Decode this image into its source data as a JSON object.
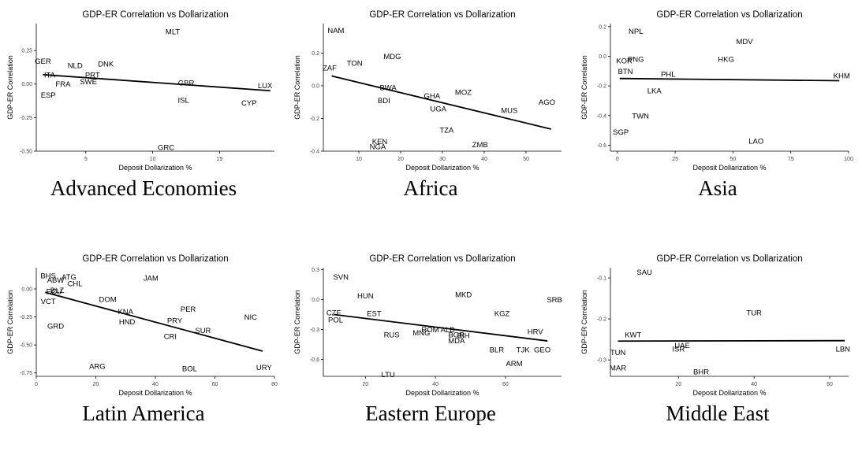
{
  "panels": [
    {
      "caption": "Advanced Economies",
      "chart_data": {
        "type": "scatter",
        "title": "GDP-ER Correlation vs Dollarization",
        "xlabel": "Deposit Dollarization %",
        "ylabel": "GDP-ER Correlation",
        "xlim": [
          1.3,
          19.1
        ],
        "ylim": [
          -0.5,
          0.45
        ],
        "xticks": [
          5,
          10,
          15
        ],
        "yticks": [
          -0.5,
          -0.25,
          0.0,
          0.25
        ],
        "ytick_labels": [
          "-0.50",
          "-0.25",
          "0.00",
          "0.25"
        ],
        "points": [
          {
            "label": "MLT",
            "x": 11.5,
            "y": 0.39
          },
          {
            "label": "GER",
            "x": 1.8,
            "y": 0.17
          },
          {
            "label": "NLD",
            "x": 4.2,
            "y": 0.14
          },
          {
            "label": "DNK",
            "x": 6.5,
            "y": 0.15
          },
          {
            "label": "ITA",
            "x": 2.3,
            "y": 0.07
          },
          {
            "label": "PRT",
            "x": 5.5,
            "y": 0.07
          },
          {
            "label": "FRA",
            "x": 3.3,
            "y": 0.0
          },
          {
            "label": "SWE",
            "x": 5.2,
            "y": 0.02
          },
          {
            "label": "GBR",
            "x": 12.5,
            "y": 0.01
          },
          {
            "label": "LUX",
            "x": 18.4,
            "y": -0.01
          },
          {
            "label": "ESP",
            "x": 2.2,
            "y": -0.08
          },
          {
            "label": "ISL",
            "x": 12.3,
            "y": -0.12
          },
          {
            "label": "CYP",
            "x": 17.2,
            "y": -0.14
          },
          {
            "label": "GRC",
            "x": 11.0,
            "y": -0.47
          }
        ],
        "fit_line": [
          [
            1.8,
            0.07
          ],
          [
            18.8,
            -0.05
          ]
        ]
      }
    },
    {
      "caption": "Africa",
      "chart_data": {
        "type": "scatter",
        "title": "GDP-ER Correlation vs Dollarization",
        "xlabel": "Deposit Dollarization %",
        "ylabel": "GDP-ER Correlation",
        "xlim": [
          1.5,
          58.5
        ],
        "ylim": [
          -0.4,
          0.38
        ],
        "xticks": [
          10,
          20,
          30,
          40,
          50
        ],
        "yticks": [
          -0.4,
          -0.2,
          0.0,
          0.2
        ],
        "ytick_labels": [
          "-0.4",
          "-0.2",
          "0.0",
          "0.2"
        ],
        "points": [
          {
            "label": "NAM",
            "x": 4.5,
            "y": 0.34
          },
          {
            "label": "MDG",
            "x": 18.0,
            "y": 0.18
          },
          {
            "label": "TON",
            "x": 9.0,
            "y": 0.14
          },
          {
            "label": "ZAF",
            "x": 3.0,
            "y": 0.11
          },
          {
            "label": "BWA",
            "x": 17.0,
            "y": -0.01
          },
          {
            "label": "MOZ",
            "x": 35.0,
            "y": -0.04
          },
          {
            "label": "GHA",
            "x": 27.5,
            "y": -0.06
          },
          {
            "label": "AGO",
            "x": 55.0,
            "y": -0.1
          },
          {
            "label": "BDI",
            "x": 16.0,
            "y": -0.09
          },
          {
            "label": "UGA",
            "x": 29.0,
            "y": -0.14
          },
          {
            "label": "MUS",
            "x": 46.0,
            "y": -0.15
          },
          {
            "label": "TZA",
            "x": 31.0,
            "y": -0.27
          },
          {
            "label": "KEN",
            "x": 15.0,
            "y": -0.34
          },
          {
            "label": "ZMB",
            "x": 39.0,
            "y": -0.36
          },
          {
            "label": "NGA",
            "x": 14.5,
            "y": -0.37
          }
        ],
        "fit_line": [
          [
            3.5,
            0.06
          ],
          [
            56.0,
            -0.265
          ]
        ]
      }
    },
    {
      "caption": "Asia",
      "chart_data": {
        "type": "scatter",
        "title": "GDP-ER Correlation vs Dollarization",
        "xlabel": "Deposit Dollarization %",
        "ylabel": "GDP-ER Correlation",
        "xlim": [
          -3,
          100
        ],
        "ylim": [
          -0.64,
          0.22
        ],
        "xticks": [
          0,
          25,
          50,
          75,
          100
        ],
        "yticks": [
          -0.6,
          -0.4,
          -0.2,
          0.0,
          0.2
        ],
        "ytick_labels": [
          "-0.6",
          "-0.4",
          "-0.2",
          "0.0",
          "0.2"
        ],
        "points": [
          {
            "label": "NPL",
            "x": 8.0,
            "y": 0.17
          },
          {
            "label": "MDV",
            "x": 55.0,
            "y": 0.1
          },
          {
            "label": "KOR",
            "x": 3.0,
            "y": -0.03
          },
          {
            "label": "PNG",
            "x": 8.0,
            "y": -0.02
          },
          {
            "label": "HKG",
            "x": 47.0,
            "y": -0.02
          },
          {
            "label": "BTN",
            "x": 3.5,
            "y": -0.1
          },
          {
            "label": "PHL",
            "x": 22.0,
            "y": -0.12
          },
          {
            "label": "KHM",
            "x": 97.0,
            "y": -0.13
          },
          {
            "label": "LKA",
            "x": 16.0,
            "y": -0.23
          },
          {
            "label": "TWN",
            "x": 10.0,
            "y": -0.4
          },
          {
            "label": "SGP",
            "x": 1.5,
            "y": -0.51
          },
          {
            "label": "LAO",
            "x": 60.0,
            "y": -0.57
          }
        ],
        "fit_line": [
          [
            1.0,
            -0.15
          ],
          [
            96.0,
            -0.165
          ]
        ]
      }
    },
    {
      "caption": "Latin America",
      "chart_data": {
        "type": "scatter",
        "title": "GDP-ER Correlation vs Dollarization",
        "xlabel": "Deposit Dollarization %",
        "ylabel": "GDP-ER Correlation",
        "xlim": [
          0,
          80
        ],
        "ylim": [
          -0.78,
          0.19
        ],
        "xticks": [
          0,
          20,
          40,
          60,
          80
        ],
        "yticks": [
          -0.75,
          -0.5,
          -0.25,
          0.0
        ],
        "ytick_labels": [
          "-0.75",
          "-0.50",
          "-0.25",
          "0.00"
        ],
        "points": [
          {
            "label": "BHS",
            "x": 4.0,
            "y": 0.12
          },
          {
            "label": "ATG",
            "x": 11.0,
            "y": 0.11
          },
          {
            "label": "JAM",
            "x": 38.5,
            "y": 0.1
          },
          {
            "label": "ABW",
            "x": 6.5,
            "y": 0.08
          },
          {
            "label": "CHL",
            "x": 13.0,
            "y": 0.05
          },
          {
            "label": "BLZ",
            "x": 7.0,
            "y": -0.01
          },
          {
            "label": "ECU",
            "x": 6.0,
            "y": -0.02
          },
          {
            "label": "DOM",
            "x": 24.0,
            "y": -0.09
          },
          {
            "label": "VCT",
            "x": 4.0,
            "y": -0.11
          },
          {
            "label": "PER",
            "x": 51.0,
            "y": -0.18
          },
          {
            "label": "KNA",
            "x": 30.0,
            "y": -0.2
          },
          {
            "label": "NIC",
            "x": 72.0,
            "y": -0.25
          },
          {
            "label": "HND",
            "x": 30.5,
            "y": -0.29
          },
          {
            "label": "PRY",
            "x": 46.5,
            "y": -0.28
          },
          {
            "label": "GRD",
            "x": 6.5,
            "y": -0.33
          },
          {
            "label": "SUR",
            "x": 56.0,
            "y": -0.37
          },
          {
            "label": "CRI",
            "x": 45.0,
            "y": -0.42
          },
          {
            "label": "ARG",
            "x": 20.5,
            "y": -0.69
          },
          {
            "label": "BOL",
            "x": 51.5,
            "y": -0.71
          },
          {
            "label": "URY",
            "x": 76.5,
            "y": -0.7
          }
        ],
        "fit_line": [
          [
            3.0,
            -0.03
          ],
          [
            76.0,
            -0.555
          ]
        ]
      }
    },
    {
      "caption": "Eastern Europe",
      "chart_data": {
        "type": "scatter",
        "title": "GDP-ER Correlation vs Dollarization",
        "xlabel": "Deposit Dollarization %",
        "ylabel": "GDP-ER Correlation",
        "xlim": [
          8,
          76
        ],
        "ylim": [
          -0.77,
          0.32
        ],
        "xticks": [
          20,
          40,
          60
        ],
        "yticks": [
          -0.6,
          -0.3,
          0.0,
          0.3
        ],
        "ytick_labels": [
          "-0.6",
          "-0.3",
          "0.0",
          "0.3"
        ],
        "points": [
          {
            "label": "SVN",
            "x": 13.0,
            "y": 0.23
          },
          {
            "label": "MKD",
            "x": 48.0,
            "y": 0.05
          },
          {
            "label": "HUN",
            "x": 20.0,
            "y": 0.04
          },
          {
            "label": "SRB",
            "x": 74.0,
            "y": 0.0
          },
          {
            "label": "CZE",
            "x": 11.0,
            "y": -0.13
          },
          {
            "label": "EST",
            "x": 22.5,
            "y": -0.14
          },
          {
            "label": "KGZ",
            "x": 59.0,
            "y": -0.14
          },
          {
            "label": "POL",
            "x": 11.5,
            "y": -0.2
          },
          {
            "label": "ROM",
            "x": 38.5,
            "y": -0.3
          },
          {
            "label": "ALB",
            "x": 43.5,
            "y": -0.3
          },
          {
            "label": "MNG",
            "x": 36.0,
            "y": -0.33
          },
          {
            "label": "HRV",
            "x": 68.5,
            "y": -0.32
          },
          {
            "label": "RUS",
            "x": 27.5,
            "y": -0.35
          },
          {
            "label": "BGR",
            "x": 46.0,
            "y": -0.35
          },
          {
            "label": "BIH",
            "x": 48.0,
            "y": -0.36
          },
          {
            "label": "MDA",
            "x": 46.0,
            "y": -0.41
          },
          {
            "label": "BLR",
            "x": 57.5,
            "y": -0.5
          },
          {
            "label": "TJK",
            "x": 65.0,
            "y": -0.5
          },
          {
            "label": "GEO",
            "x": 70.5,
            "y": -0.5
          },
          {
            "label": "ARM",
            "x": 62.5,
            "y": -0.64
          },
          {
            "label": "LTU",
            "x": 26.5,
            "y": -0.75
          }
        ],
        "fit_line": [
          [
            11.0,
            -0.15
          ],
          [
            72.0,
            -0.415
          ]
        ]
      }
    },
    {
      "caption": "Middle East",
      "chart_data": {
        "type": "scatter",
        "title": "GDP-ER Correlation vs Dollarization",
        "xlabel": "Deposit Dollarization %",
        "ylabel": "GDP-ER Correlation",
        "xlim": [
          2,
          65
        ],
        "ylim": [
          -0.34,
          -0.075
        ],
        "xticks": [
          20,
          40,
          60
        ],
        "yticks": [
          -0.3,
          -0.2,
          -0.1
        ],
        "ytick_labels": [
          "-0.3",
          "-0.2",
          "-0.1"
        ],
        "points": [
          {
            "label": "SAU",
            "x": 11.0,
            "y": -0.086
          },
          {
            "label": "TUR",
            "x": 40.0,
            "y": -0.184
          },
          {
            "label": "KWT",
            "x": 8.0,
            "y": -0.238
          },
          {
            "label": "UAE",
            "x": 21.0,
            "y": -0.264
          },
          {
            "label": "ISR",
            "x": 20.0,
            "y": -0.273
          },
          {
            "label": "LBN",
            "x": 63.5,
            "y": -0.273
          },
          {
            "label": "TUN",
            "x": 4.0,
            "y": -0.281
          },
          {
            "label": "MAR",
            "x": 4.0,
            "y": -0.319
          },
          {
            "label": "BHR",
            "x": 26.0,
            "y": -0.328
          }
        ],
        "fit_line": [
          [
            4.0,
            -0.254
          ],
          [
            64.0,
            -0.253
          ]
        ]
      }
    }
  ]
}
